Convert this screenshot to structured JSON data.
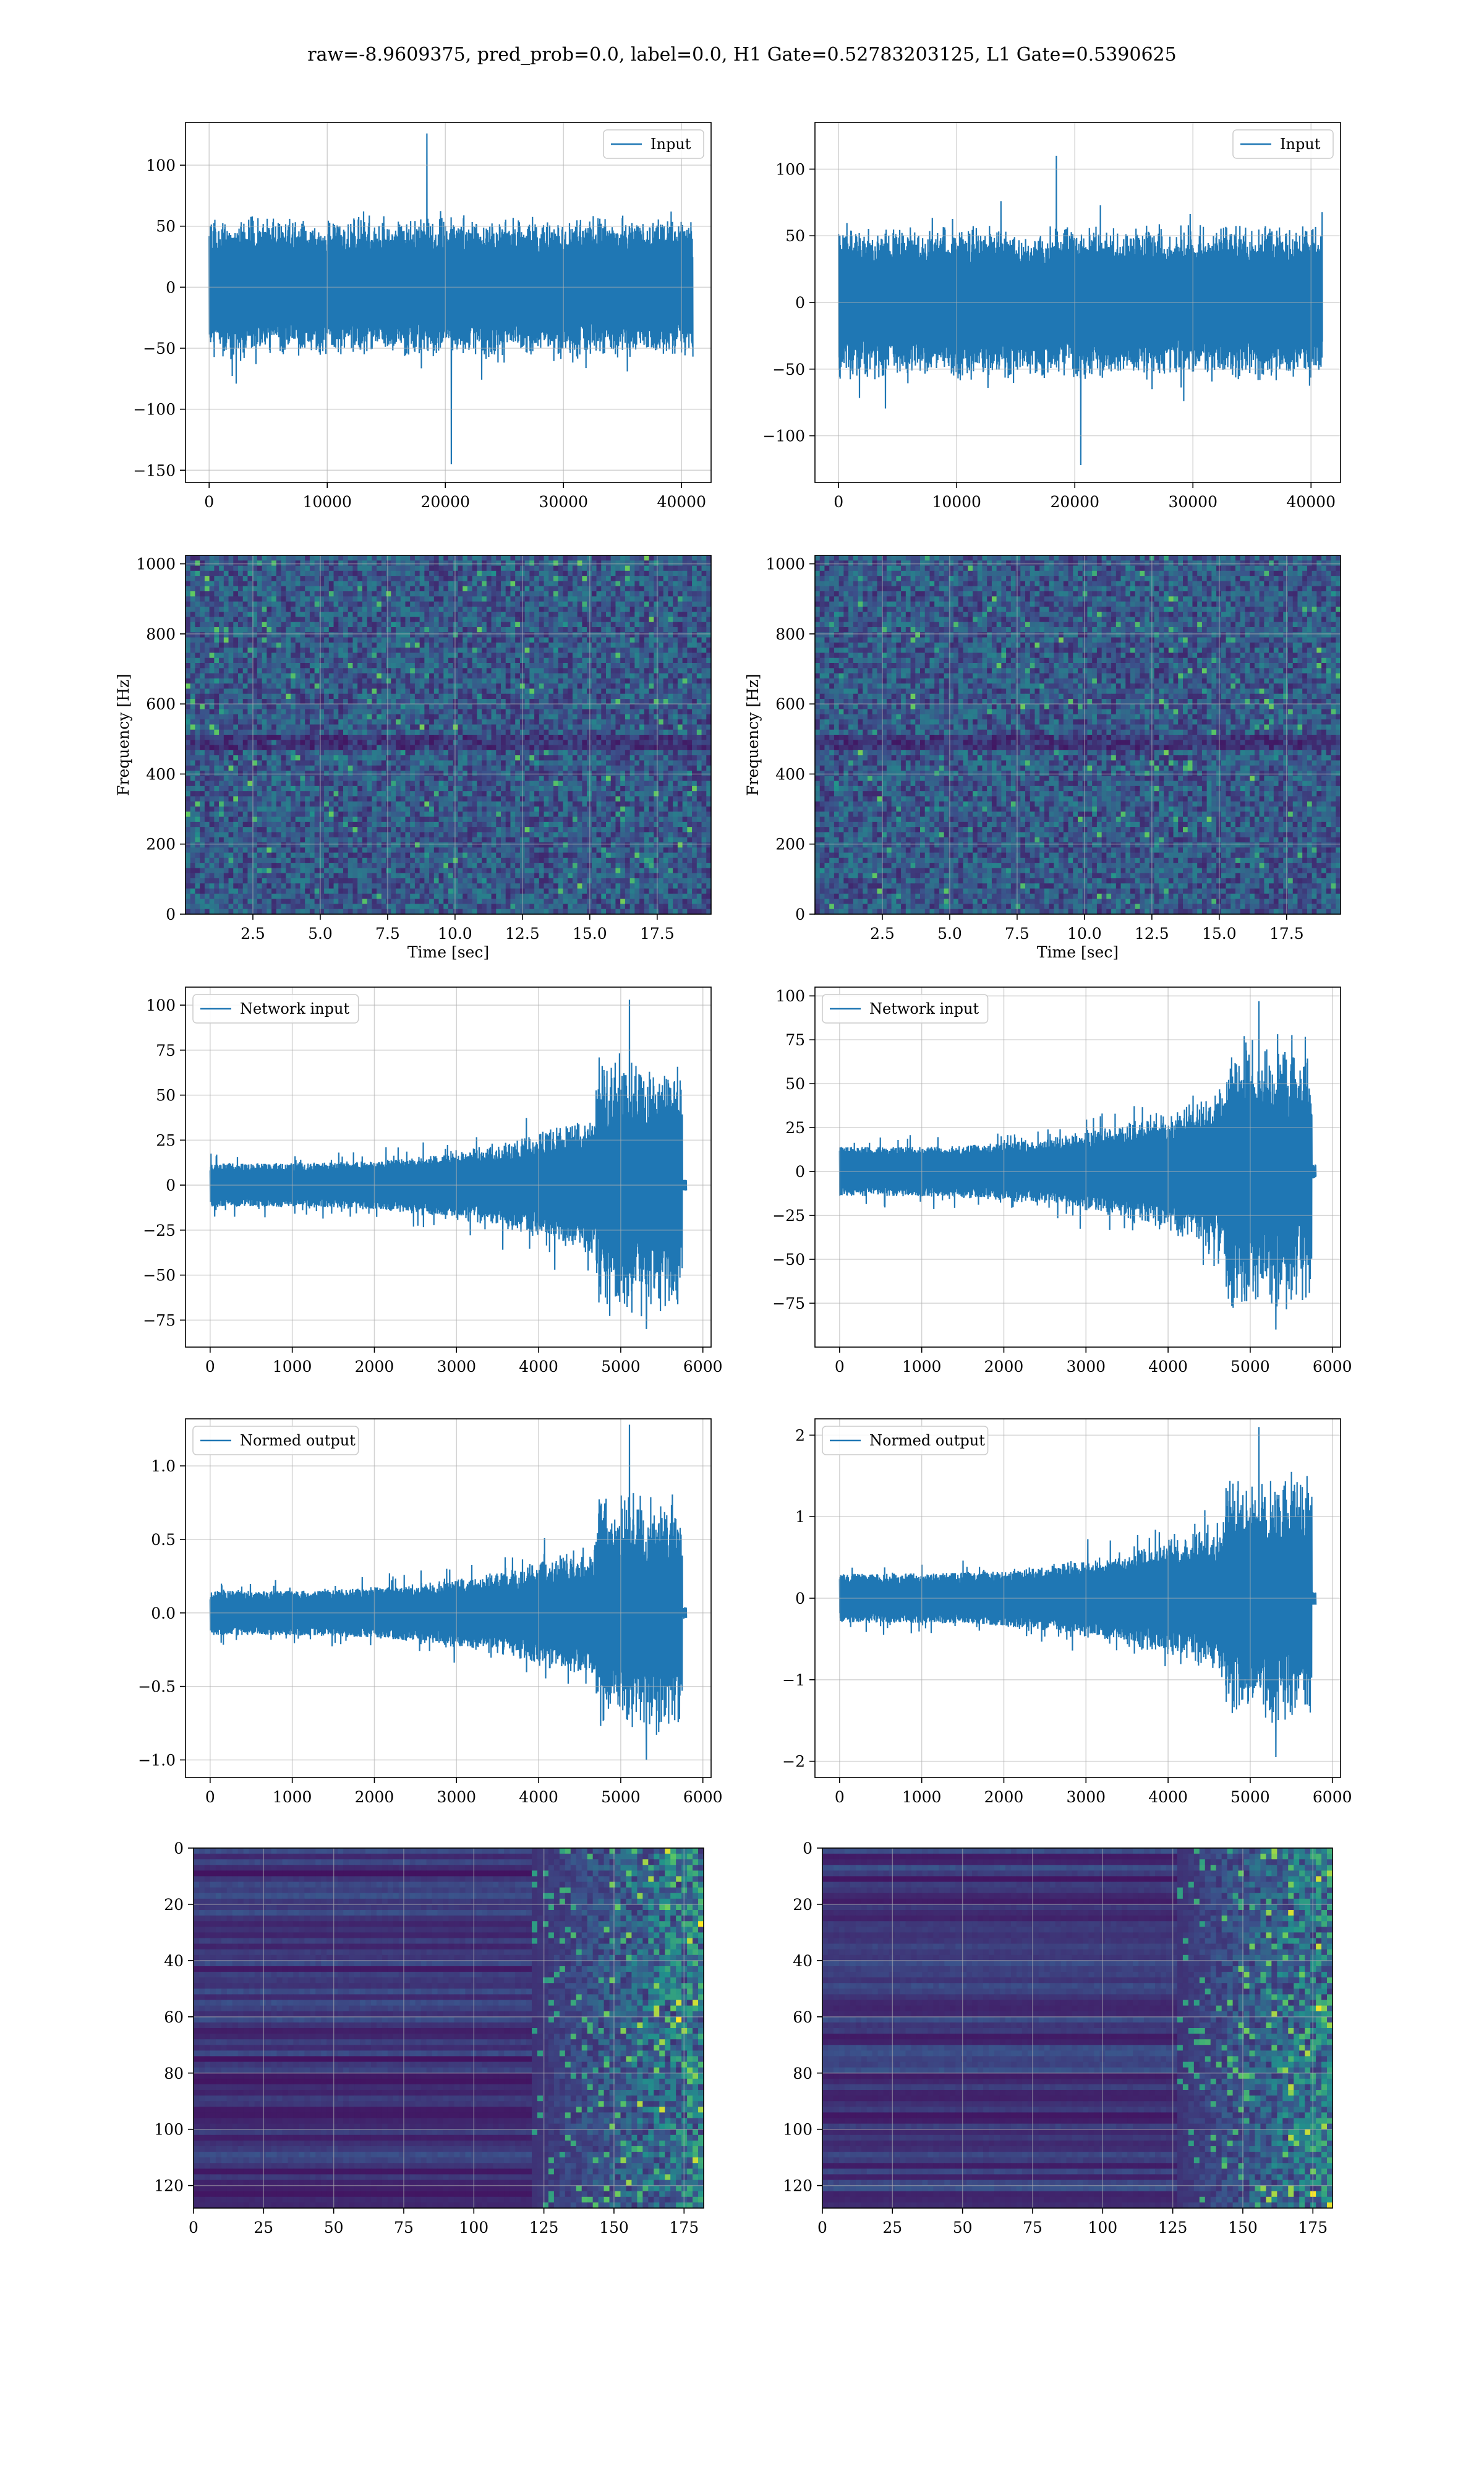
{
  "figure": {
    "title": "raw=-8.9609375, pred_prob=0.0, label=0.0, H1 Gate=0.52783203125, L1 Gate=0.5390625"
  },
  "colors": {
    "series": "#1f77b4",
    "viridis": [
      "#440154",
      "#3b528b",
      "#21918c",
      "#5ec962",
      "#fde725"
    ],
    "grid": "#b0b0b0"
  },
  "chart_data": [
    {
      "id": "h1-input",
      "type": "line",
      "legend": "Input",
      "legend_loc": "upper right",
      "xlim": [
        -2000,
        42500
      ],
      "ylim": [
        -160,
        135
      ],
      "xticks": [
        0,
        10000,
        20000,
        30000,
        40000
      ],
      "yticks": [
        -150,
        -100,
        -50,
        0,
        50,
        100
      ],
      "grid": true,
      "signal": {
        "x_start": 0,
        "x_end": 40960,
        "band": [
          -50,
          50
        ],
        "peak_max": 126,
        "peak_min": -145
      }
    },
    {
      "id": "l1-input",
      "type": "line",
      "legend": "Input",
      "legend_loc": "upper right",
      "xlim": [
        -2000,
        42500
      ],
      "ylim": [
        -135,
        135
      ],
      "xticks": [
        0,
        10000,
        20000,
        30000,
        40000
      ],
      "yticks": [
        -100,
        -50,
        0,
        50,
        100
      ],
      "grid": true,
      "signal": {
        "x_start": 0,
        "x_end": 40960,
        "band": [
          -50,
          50
        ],
        "peak_max": 110,
        "peak_min": -122
      }
    },
    {
      "id": "h1-spectrogram",
      "type": "heatmap",
      "colormap": "viridis",
      "xlabel": "Time [sec]",
      "ylabel": "Frequency [Hz]",
      "xlim": [
        0,
        19.5
      ],
      "ylim": [
        0,
        1024
      ],
      "xticks": [
        2.5,
        5.0,
        7.5,
        10.0,
        12.5,
        15.0,
        17.5
      ],
      "yticks": [
        0,
        200,
        400,
        600,
        800,
        1000
      ],
      "grid": true
    },
    {
      "id": "l1-spectrogram",
      "type": "heatmap",
      "colormap": "viridis",
      "xlabel": "Time [sec]",
      "ylabel": "Frequency [Hz]",
      "xlim": [
        0,
        19.5
      ],
      "ylim": [
        0,
        1024
      ],
      "xticks": [
        2.5,
        5.0,
        7.5,
        10.0,
        12.5,
        15.0,
        17.5
      ],
      "yticks": [
        0,
        200,
        400,
        600,
        800,
        1000
      ],
      "grid": true
    },
    {
      "id": "h1-network-input",
      "type": "line",
      "legend": "Network input",
      "legend_loc": "upper left",
      "xlim": [
        -300,
        6100
      ],
      "ylim": [
        -90,
        110
      ],
      "xticks": [
        0,
        1000,
        2000,
        3000,
        4000,
        5000,
        6000
      ],
      "yticks": [
        -75,
        -50,
        -25,
        0,
        25,
        50,
        75,
        100
      ],
      "grid": true,
      "signal": {
        "x_start": 0,
        "x_end": 5800,
        "burst_start": 4700,
        "burst_end": 5750,
        "base_amp": 12,
        "grow_amp": 25,
        "burst_amp": 60,
        "peak_max": 103,
        "peak_min": -80,
        "tail_amp": 3
      }
    },
    {
      "id": "l1-network-input",
      "type": "line",
      "legend": "Network input",
      "legend_loc": "upper left",
      "xlim": [
        -300,
        6100
      ],
      "ylim": [
        -100,
        105
      ],
      "xticks": [
        0,
        1000,
        2000,
        3000,
        4000,
        5000,
        6000
      ],
      "yticks": [
        -75,
        -50,
        -25,
        0,
        25,
        50,
        75,
        100
      ],
      "grid": true,
      "signal": {
        "x_start": 0,
        "x_end": 5800,
        "burst_start": 4700,
        "burst_end": 5750,
        "base_amp": 14,
        "grow_amp": 30,
        "burst_amp": 65,
        "peak_max": 97,
        "peak_min": -90,
        "tail_amp": 4
      }
    },
    {
      "id": "h1-normed-output",
      "type": "line",
      "legend": "Normed output",
      "legend_loc": "upper left",
      "xlim": [
        -300,
        6100
      ],
      "ylim": [
        -1.12,
        1.32
      ],
      "xticks": [
        0,
        1000,
        2000,
        3000,
        4000,
        5000,
        6000
      ],
      "yticks": [
        -1.0,
        -0.5,
        0.0,
        0.5,
        1.0
      ],
      "grid": true,
      "signal": {
        "x_start": 0,
        "x_end": 5800,
        "burst_start": 4700,
        "burst_end": 5750,
        "base_amp": 0.15,
        "grow_amp": 0.3,
        "burst_amp": 0.7,
        "peak_max": 1.28,
        "peak_min": -1.0,
        "tail_amp": 0.04
      }
    },
    {
      "id": "l1-normed-output",
      "type": "line",
      "legend": "Normed output",
      "legend_loc": "upper left",
      "xlim": [
        -300,
        6100
      ],
      "ylim": [
        -2.2,
        2.2
      ],
      "xticks": [
        0,
        1000,
        2000,
        3000,
        4000,
        5000,
        6000
      ],
      "yticks": [
        -2,
        -1,
        0,
        1,
        2
      ],
      "grid": true,
      "signal": {
        "x_start": 0,
        "x_end": 5800,
        "burst_start": 4700,
        "burst_end": 5750,
        "base_amp": 0.3,
        "grow_amp": 0.6,
        "burst_amp": 1.3,
        "peak_max": 2.1,
        "peak_min": -1.95,
        "tail_amp": 0.08
      }
    },
    {
      "id": "h1-feature-map",
      "type": "heatmap",
      "colormap": "viridis",
      "xlim": [
        0,
        182
      ],
      "ylim": [
        128,
        0
      ],
      "xticks": [
        0,
        25,
        50,
        75,
        100,
        125,
        150,
        175
      ],
      "yticks": [
        0,
        20,
        40,
        60,
        80,
        100,
        120
      ],
      "grid": true,
      "active_from_column": 120
    },
    {
      "id": "l1-feature-map",
      "type": "heatmap",
      "colormap": "viridis",
      "xlim": [
        0,
        182
      ],
      "ylim": [
        128,
        0
      ],
      "xticks": [
        0,
        25,
        50,
        75,
        100,
        125,
        150,
        175
      ],
      "yticks": [
        0,
        20,
        40,
        60,
        80,
        100,
        120
      ],
      "grid": true,
      "active_from_column": 125
    }
  ]
}
